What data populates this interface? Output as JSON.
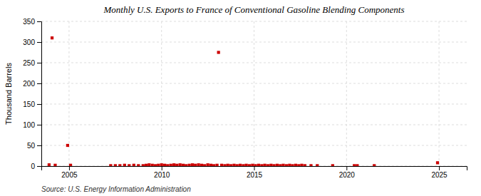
{
  "chart_data": {
    "type": "scatter",
    "title": "Monthly U.S. Exports to France of Conventional Gasoline Blending Components",
    "ylabel": "Thousand Barrels",
    "source": "Source: U.S. Energy Information Administration",
    "color": "#cc0000",
    "marker": "square",
    "grid": true,
    "xlim": [
      2003.5,
      2026.5
    ],
    "xticks": [
      2005,
      2010,
      2015,
      2020,
      2025
    ],
    "ylim": [
      0,
      350
    ],
    "yticks": [
      0,
      50,
      100,
      150,
      200,
      250,
      300,
      350
    ],
    "x": [
      2003.92,
      2004.08,
      2004.25,
      2004.92,
      2005.08,
      2007.25,
      2007.5,
      2007.75,
      2008.0,
      2008.25,
      2008.5,
      2008.75,
      2009.0,
      2009.17,
      2009.33,
      2009.5,
      2009.67,
      2009.83,
      2010.0,
      2010.17,
      2010.33,
      2010.5,
      2010.67,
      2010.83,
      2011.0,
      2011.17,
      2011.33,
      2011.5,
      2011.67,
      2011.83,
      2012.0,
      2012.17,
      2012.33,
      2012.5,
      2012.67,
      2012.83,
      2013.0,
      2013.08,
      2013.25,
      2013.42,
      2013.58,
      2013.75,
      2013.92,
      2014.08,
      2014.25,
      2014.42,
      2014.58,
      2014.75,
      2014.92,
      2015.08,
      2015.25,
      2015.42,
      2015.58,
      2015.75,
      2015.92,
      2016.08,
      2016.25,
      2016.42,
      2016.58,
      2016.75,
      2016.92,
      2017.08,
      2017.25,
      2017.42,
      2017.58,
      2017.75,
      2018.08,
      2018.42,
      2019.25,
      2020.42,
      2020.58,
      2021.5,
      2024.92
    ],
    "values": [
      3,
      310,
      2,
      50,
      2,
      1,
      1,
      1,
      2,
      1,
      2,
      1,
      1,
      2,
      3,
      2,
      1,
      2,
      3,
      2,
      1,
      2,
      3,
      2,
      3,
      2,
      1,
      2,
      3,
      2,
      3,
      2,
      1,
      3,
      2,
      1,
      2,
      275,
      2,
      1,
      2,
      1,
      2,
      1,
      2,
      1,
      2,
      1,
      2,
      1,
      2,
      1,
      2,
      1,
      2,
      1,
      2,
      1,
      2,
      1,
      2,
      1,
      2,
      1,
      2,
      1,
      1,
      1,
      1,
      1,
      1,
      1,
      8
    ]
  }
}
